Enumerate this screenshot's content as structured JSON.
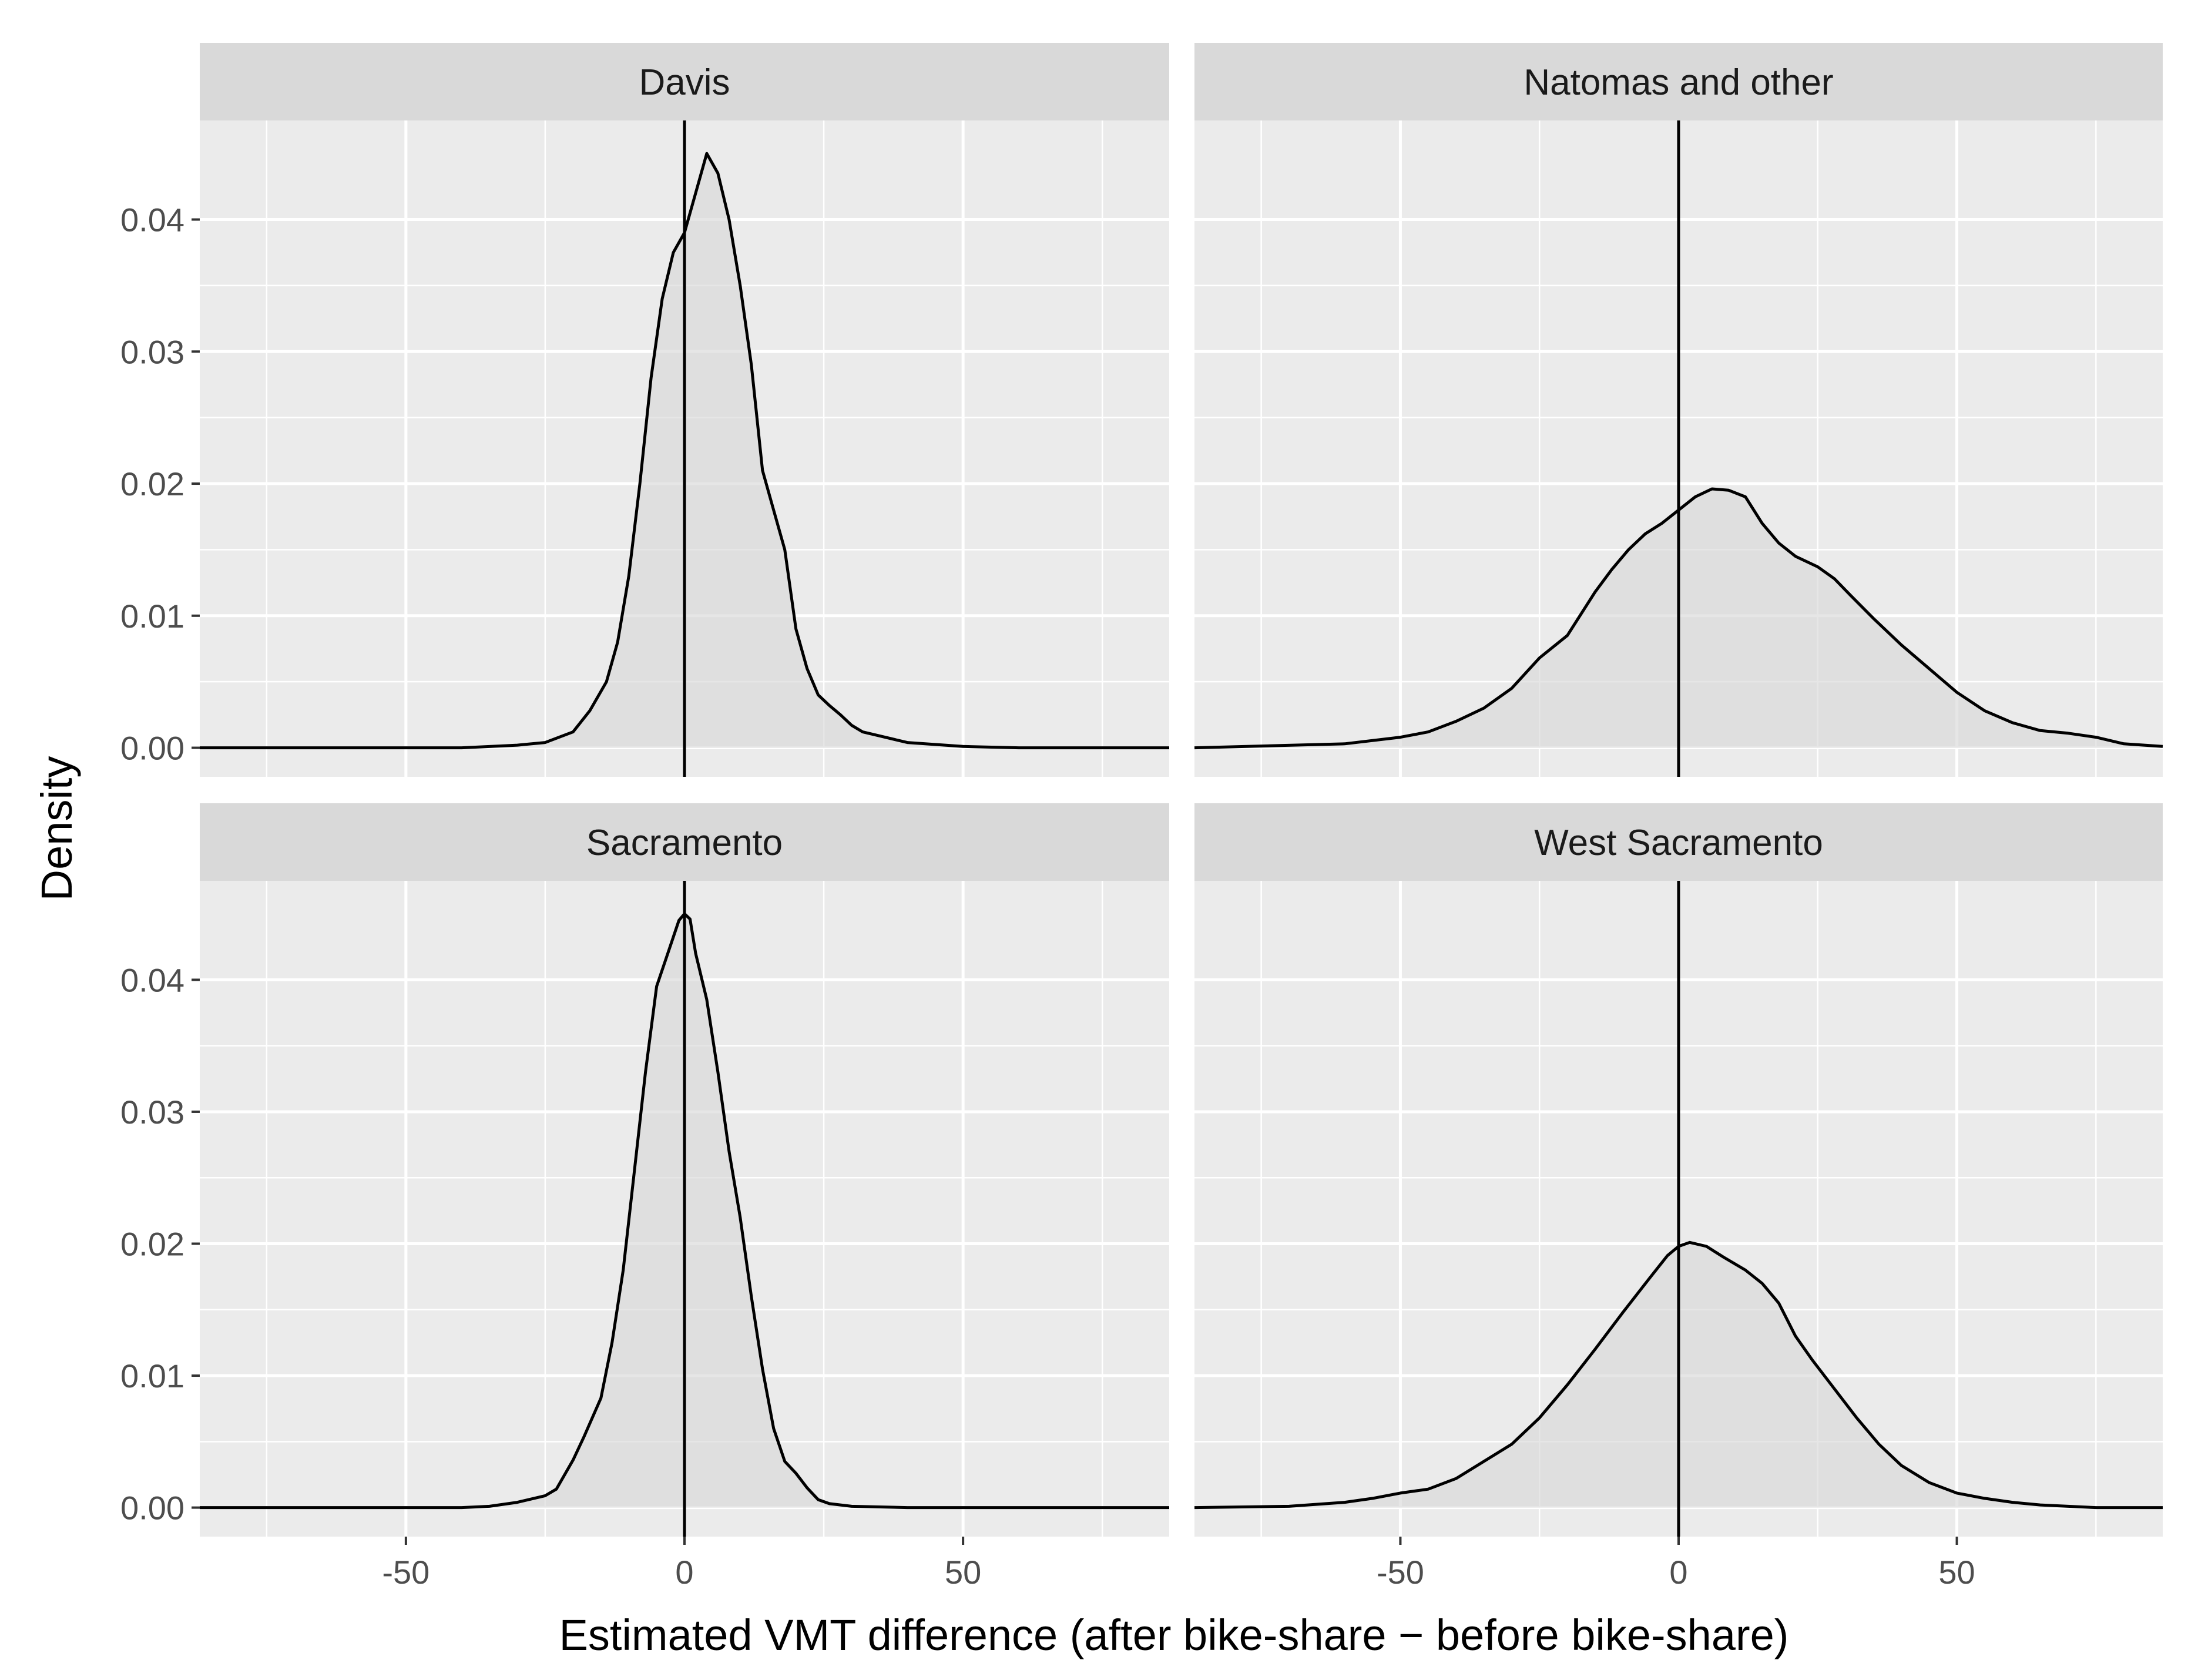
{
  "chart_data": {
    "type": "density-facets",
    "xlabel": "Estimated VMT difference (after bike-share − before bike-share)",
    "ylabel": "Density",
    "xlim": [
      -87,
      87
    ],
    "ylim": [
      -0.0022,
      0.0475
    ],
    "x_ticks": [
      -50,
      0,
      50
    ],
    "x_tick_labels": [
      "-50",
      "0",
      "50"
    ],
    "y_ticks": [
      0,
      0.01,
      0.02,
      0.03,
      0.04
    ],
    "y_tick_labels": [
      "0.00",
      "0.01",
      "0.02",
      "0.03",
      "0.04"
    ],
    "reference_line_x": 0,
    "colors": {
      "panel_bg": "#ebebeb",
      "strip_bg": "#d9d9d9",
      "grid": "#ffffff",
      "fill": "#d9d9d9",
      "line": "#000000",
      "tick_text": "#4d4d4d"
    },
    "facets": [
      {
        "title": "Davis",
        "x": [
          -87,
          -40,
          -30,
          -25,
          -20,
          -17,
          -14,
          -12,
          -10,
          -8,
          -6,
          -4,
          -2,
          0,
          2,
          4,
          6,
          8,
          10,
          12,
          14,
          16,
          18,
          20,
          22,
          24,
          26,
          28,
          30,
          32,
          35,
          40,
          50,
          60,
          87
        ],
        "density": [
          0.0,
          0.0,
          0.0002,
          0.0004,
          0.0012,
          0.0028,
          0.005,
          0.008,
          0.013,
          0.02,
          0.028,
          0.034,
          0.0375,
          0.039,
          0.042,
          0.045,
          0.0435,
          0.04,
          0.035,
          0.029,
          0.021,
          0.018,
          0.015,
          0.009,
          0.006,
          0.004,
          0.0032,
          0.0025,
          0.0017,
          0.0012,
          0.0009,
          0.0004,
          0.0001,
          0.0,
          0.0
        ]
      },
      {
        "title": "Natomas and other",
        "x": [
          -87,
          -60,
          -50,
          -45,
          -40,
          -35,
          -30,
          -25,
          -20,
          -15,
          -12,
          -9,
          -6,
          -3,
          0,
          3,
          6,
          9,
          12,
          15,
          18,
          21,
          25,
          28,
          31,
          35,
          40,
          45,
          50,
          55,
          60,
          65,
          70,
          75,
          80,
          87
        ],
        "density": [
          0.0,
          0.0003,
          0.0008,
          0.0012,
          0.002,
          0.003,
          0.0045,
          0.0068,
          0.0085,
          0.0118,
          0.0135,
          0.015,
          0.0162,
          0.017,
          0.018,
          0.019,
          0.0196,
          0.0195,
          0.019,
          0.017,
          0.0155,
          0.0145,
          0.0137,
          0.0128,
          0.0115,
          0.0098,
          0.0078,
          0.006,
          0.0042,
          0.0028,
          0.0019,
          0.0013,
          0.0011,
          0.0008,
          0.0003,
          0.0001
        ]
      },
      {
        "title": "Sacramento",
        "x": [
          -87,
          -40,
          -35,
          -30,
          -25,
          -23,
          -20,
          -18,
          -15,
          -13,
          -11,
          -9,
          -7,
          -5,
          -3,
          -1,
          0,
          1,
          2,
          4,
          6,
          8,
          10,
          12,
          14,
          16,
          18,
          20,
          22,
          24,
          26,
          30,
          40,
          87
        ],
        "density": [
          0.0,
          0.0,
          0.0001,
          0.0004,
          0.0009,
          0.0014,
          0.0036,
          0.0054,
          0.0083,
          0.0125,
          0.018,
          0.0255,
          0.033,
          0.0395,
          0.042,
          0.0445,
          0.045,
          0.0446,
          0.042,
          0.0385,
          0.033,
          0.027,
          0.022,
          0.016,
          0.0105,
          0.006,
          0.0035,
          0.0026,
          0.0015,
          0.0006,
          0.0003,
          0.0001,
          0.0,
          0.0
        ]
      },
      {
        "title": "West Sacramento",
        "x": [
          -87,
          -70,
          -60,
          -55,
          -50,
          -45,
          -40,
          -35,
          -30,
          -25,
          -20,
          -15,
          -10,
          -5,
          -2,
          0,
          2,
          5,
          8,
          12,
          15,
          18,
          21,
          24,
          28,
          32,
          36,
          40,
          45,
          50,
          55,
          60,
          65,
          70,
          75,
          87
        ],
        "density": [
          0.0,
          0.0001,
          0.0004,
          0.0007,
          0.0011,
          0.0014,
          0.0022,
          0.0035,
          0.0048,
          0.0068,
          0.0093,
          0.012,
          0.0148,
          0.0175,
          0.0191,
          0.0198,
          0.0201,
          0.0198,
          0.019,
          0.018,
          0.017,
          0.0155,
          0.013,
          0.0112,
          0.009,
          0.0068,
          0.0048,
          0.0032,
          0.0019,
          0.0011,
          0.0007,
          0.0004,
          0.0002,
          0.0001,
          0.0,
          0.0
        ]
      }
    ]
  }
}
